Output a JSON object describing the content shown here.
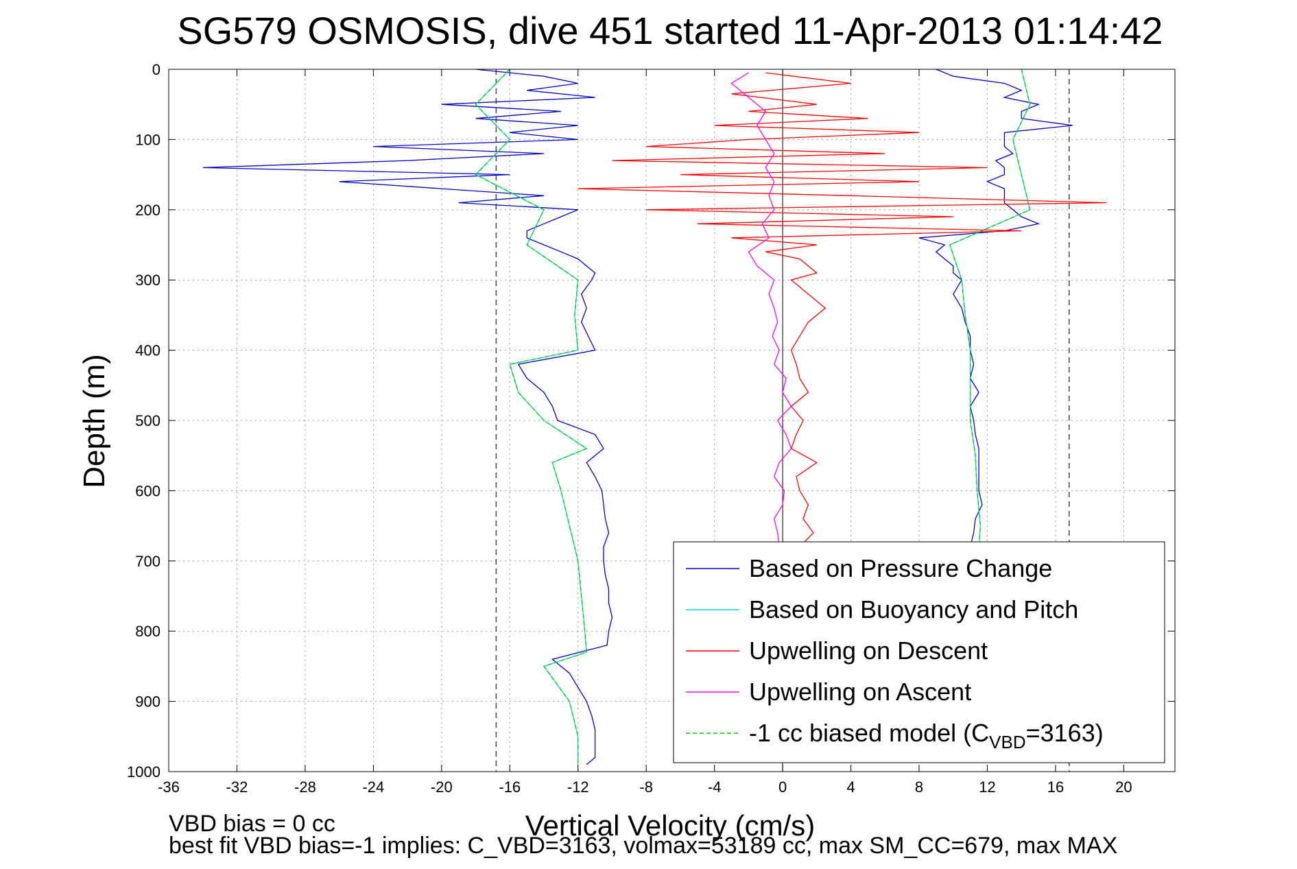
{
  "chart_data": {
    "type": "line",
    "title": "SG579 OSMOSIS, dive 451 started 11-Apr-2013 01:14:42",
    "xlabel": "Vertical Velocity (cm/s)",
    "ylabel": "Depth (m)",
    "xlim": [
      -36,
      23
    ],
    "ylim": [
      0,
      1000
    ],
    "y_reversed": true,
    "grid": true,
    "xticks": [
      -36,
      -32,
      -28,
      -24,
      -20,
      -16,
      -12,
      -8,
      -4,
      0,
      4,
      8,
      12,
      16,
      20
    ],
    "xtick_labels": [
      "-36",
      "-32",
      "-28",
      "-24",
      "-20",
      "-16",
      "-12",
      "-8",
      "-4",
      "0",
      "4",
      "8",
      "12",
      "16",
      "20"
    ],
    "yticks": [
      0,
      100,
      200,
      300,
      400,
      500,
      600,
      700,
      800,
      900,
      1000
    ],
    "ytick_labels": [
      "0",
      "100",
      "200",
      "300",
      "400",
      "500",
      "600",
      "700",
      "800",
      "900",
      "1000"
    ],
    "reference_lines": {
      "zero": 0,
      "dashed_limits": [
        -16.8,
        16.8
      ]
    },
    "legend_position": "bottom-right",
    "legend_entries": [
      {
        "label": "Based on Pressure Change",
        "color": "#0000cc",
        "dash": "solid"
      },
      {
        "label": "Based on Buoyancy and Pitch",
        "color": "#00dddd",
        "dash": "solid"
      },
      {
        "label": "Upwelling on Descent",
        "color": "#ff0000",
        "dash": "solid"
      },
      {
        "label": "Upwelling on Ascent",
        "color": "#ff00ff",
        "dash": "solid"
      },
      {
        "label_pre": "-1 cc biased model (C",
        "label_sub": "VBD",
        "label_post": "=3163)",
        "color": "#00cc00",
        "dash": "dashed"
      }
    ],
    "series": [
      {
        "name": "Based on Pressure Change",
        "color": "#0000cc",
        "dash": "solid",
        "segments": [
          {
            "depth": [
              0,
              10,
              20,
              30,
              40,
              50,
              60,
              70,
              80,
              90,
              100,
              110,
              120,
              130,
              140,
              150,
              160,
              170,
              180,
              190,
              200,
              210,
              220,
              230,
              240,
              250,
              260,
              270,
              280,
              290,
              300,
              320,
              340,
              360,
              380,
              400,
              420,
              440,
              460,
              480,
              500,
              520,
              540,
              560,
              580,
              600,
              620,
              640,
              660,
              680,
              700,
              720,
              740,
              760,
              780,
              800,
              820,
              840,
              860,
              880,
              900,
              920,
              940,
              960,
              980,
              990
            ],
            "velocity": [
              -18,
              -14,
              -12,
              -15,
              -11,
              -20,
              -13,
              -18,
              -12,
              -16,
              -12,
              -24,
              -14,
              -22,
              -34,
              -16,
              -26,
              -20,
              -14,
              -19,
              -12,
              -13,
              -14,
              -15,
              -15,
              -14,
              -13,
              -12,
              -11.5,
              -11,
              -11.2,
              -11.8,
              -11.5,
              -11.8,
              -11.4,
              -11,
              -15.5,
              -15,
              -14,
              -13.5,
              -13.2,
              -11,
              -10.5,
              -11.5,
              -11,
              -10.6,
              -10.5,
              -10.4,
              -10.2,
              -10.5,
              -10.5,
              -10.4,
              -10.2,
              -10.2,
              -10,
              -10.2,
              -10.3,
              -13.5,
              -12.5,
              -12,
              -11.5,
              -11.2,
              -11,
              -11,
              -11,
              -11.5
            ]
          },
          {
            "depth": [
              0,
              10,
              20,
              30,
              40,
              50,
              60,
              70,
              80,
              90,
              100,
              110,
              120,
              130,
              140,
              150,
              160,
              170,
              180,
              190,
              200,
              210,
              220,
              230,
              240,
              250,
              260,
              270,
              280,
              290,
              300,
              320,
              340,
              360,
              380,
              400,
              420,
              440,
              460,
              480,
              500,
              520,
              540,
              560,
              580,
              600,
              620,
              640,
              660,
              680
            ],
            "velocity": [
              9,
              10,
              13,
              14,
              13,
              15,
              14,
              14,
              17,
              13,
              13,
              13,
              13.5,
              12.5,
              13,
              13,
              12,
              13,
              13,
              13,
              13.5,
              14,
              15,
              13,
              8,
              9.5,
              9,
              9.5,
              10,
              10,
              10.5,
              10,
              10.5,
              10.7,
              11,
              11,
              11.2,
              11,
              11.5,
              11,
              11.2,
              11.3,
              11.5,
              11.5,
              11.5,
              11.5,
              11.7,
              11.3,
              11.2,
              11
            ]
          }
        ]
      },
      {
        "name": "Based on Buoyancy and Pitch",
        "color": "#00dddd",
        "dash": "solid",
        "segments": [
          {
            "depth": [
              0,
              50,
              100,
              150,
              200,
              250,
              300,
              350,
              400,
              420,
              460,
              500,
              540,
              560,
              600,
              650,
              700,
              750,
              800,
              830,
              850,
              900,
              950,
              990
            ],
            "velocity": [
              -16,
              -18,
              -16,
              -18,
              -14,
              -15,
              -12,
              -12.2,
              -12,
              -16,
              -15.5,
              -14,
              -11.5,
              -13.5,
              -13,
              -12.5,
              -12,
              -11.8,
              -11.6,
              -11.5,
              -14,
              -12.5,
              -12,
              -12
            ]
          },
          {
            "depth": [
              0,
              50,
              100,
              150,
              200,
              250,
              300,
              350,
              400,
              450,
              500,
              550,
              600,
              650,
              680
            ],
            "velocity": [
              14,
              14.5,
              13.5,
              14,
              14.5,
              9.8,
              10.5,
              10.7,
              11,
              11,
              11,
              11.3,
              11.4,
              11.6,
              11.5
            ]
          }
        ]
      },
      {
        "name": "Upwelling on Descent",
        "color": "#ff0000",
        "dash": "solid",
        "segments": [
          {
            "depth": [
              5,
              20,
              35,
              50,
              60,
              70,
              80,
              90,
              100,
              110,
              120,
              130,
              140,
              150,
              160,
              170,
              180,
              190,
              200,
              210,
              220,
              230,
              240,
              250,
              260,
              270,
              280,
              290,
              300,
              320,
              340,
              360,
              380,
              400,
              420,
              440,
              460,
              480,
              500,
              520,
              540,
              560,
              580,
              600,
              620,
              640,
              660,
              680
            ],
            "velocity": [
              -1,
              4,
              -3,
              2,
              -2,
              5,
              -4,
              8,
              -2,
              -8,
              6,
              -10,
              12,
              -6,
              8,
              -12,
              4,
              19,
              -8,
              10,
              -5,
              14,
              -3,
              2,
              -1,
              1,
              1.5,
              2,
              0.5,
              1.5,
              2.5,
              1.5,
              1,
              0.5,
              0.8,
              1,
              1.5,
              0.5,
              1.2,
              0.8,
              0.5,
              2,
              0.8,
              1,
              1.5,
              1.2,
              1.8,
              1
            ]
          }
        ]
      },
      {
        "name": "Upwelling on Ascent",
        "color": "#ff00ff",
        "dash": "solid",
        "segments": [
          {
            "depth": [
              5,
              20,
              40,
              60,
              80,
              100,
              120,
              140,
              160,
              180,
              200,
              220,
              240,
              260,
              280,
              300,
              320,
              340,
              360,
              380,
              400,
              420,
              440,
              460,
              480,
              500,
              520,
              540,
              560,
              580,
              600,
              620,
              640,
              660,
              680
            ],
            "velocity": [
              -2,
              -3,
              -2,
              -1,
              -1.5,
              -1,
              -0.5,
              -1,
              -0.5,
              -0.8,
              -0.5,
              -1.2,
              -0.8,
              -2,
              -1.5,
              -0.5,
              -0.8,
              -0.5,
              -0.3,
              -0.6,
              -0.2,
              -0.5,
              0.2,
              0,
              0.5,
              -0.3,
              0.2,
              0.5,
              -0.2,
              -0.5,
              0.1,
              0,
              -0.5,
              -0.3,
              -0.2
            ]
          }
        ]
      },
      {
        "name": "-1 cc biased model (C_VBD=3163)",
        "color": "#00cc00",
        "dash": "dashed",
        "segments": [
          {
            "depth": [
              0,
              50,
              100,
              150,
              200,
              250,
              300,
              350,
              400,
              420,
              460,
              500,
              540,
              560,
              600,
              650,
              700,
              750,
              800,
              830,
              850,
              900,
              950,
              990
            ],
            "velocity": [
              -16,
              -18,
              -16,
              -18,
              -14,
              -15,
              -12,
              -12.2,
              -12,
              -16,
              -15.5,
              -14,
              -11.5,
              -13.5,
              -13,
              -12.5,
              -12,
              -11.8,
              -11.6,
              -11.5,
              -14,
              -12.5,
              -12,
              -12
            ]
          },
          {
            "depth": [
              0,
              50,
              100,
              150,
              200,
              250,
              300,
              350,
              400,
              450,
              500,
              550,
              600,
              650,
              680
            ],
            "velocity": [
              14,
              14.5,
              13.5,
              14,
              14.5,
              9.8,
              10.5,
              10.7,
              11,
              11,
              11,
              11.3,
              11.4,
              11.6,
              11.5
            ]
          }
        ]
      }
    ]
  },
  "annotations": {
    "bias_line": "VBD bias = 0 cc",
    "fit_line": "best fit VBD bias=-1 implies: C_VBD=3163, volmax=53189 cc, max SM_CC=679, max MAX"
  }
}
